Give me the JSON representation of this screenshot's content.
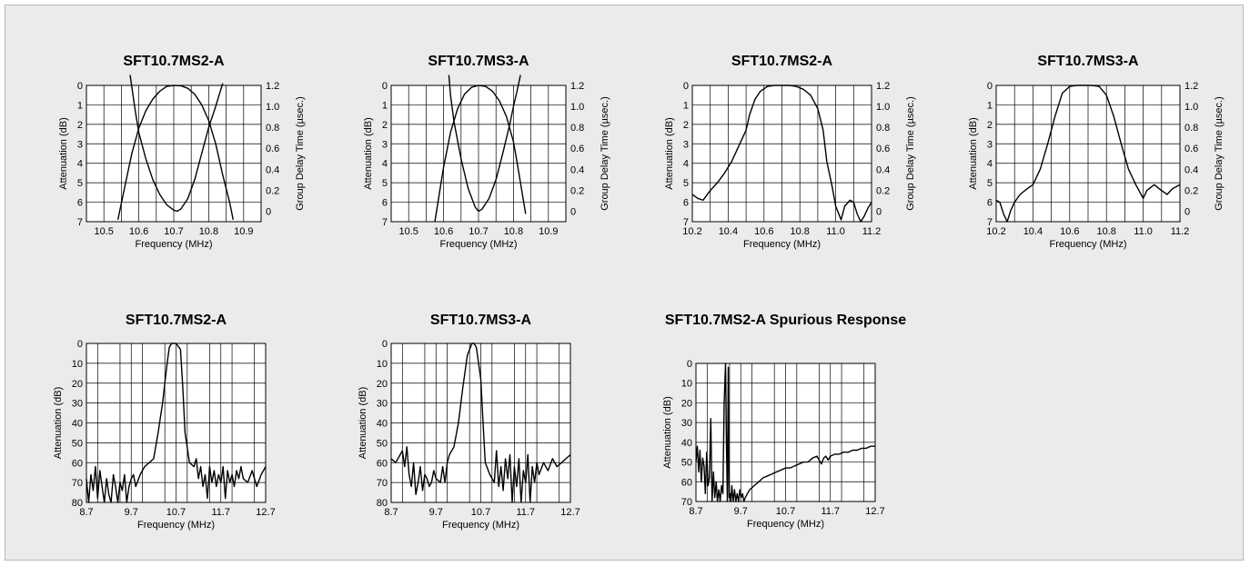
{
  "chart_data": [
    {
      "type": "line",
      "title": "SFT10.7MS2-A",
      "xlabel": "Frequency (MHz)",
      "ylabel": "Attenuation (dB)",
      "y2label": "Group Delay Time (µsec.)",
      "xlim": [
        10.45,
        10.95
      ],
      "ylim": [
        0,
        7
      ],
      "y2lim": [
        -0.1,
        1.2
      ],
      "xticks": [
        "10.5",
        "10.6",
        "10.7",
        "10.8",
        "10.9"
      ],
      "yticks": [
        "0",
        "1",
        "2",
        "3",
        "4",
        "5",
        "6",
        "7"
      ],
      "y2ticks": [
        "1.2",
        "1.0",
        "0.8",
        "0.6",
        "0.4",
        "0.2",
        "0"
      ],
      "grid": true,
      "series": [
        {
          "axis": "left",
          "x": [
            10.54,
            10.56,
            10.58,
            10.6,
            10.62,
            10.64,
            10.66,
            10.68,
            10.7,
            10.72,
            10.74,
            10.76,
            10.78,
            10.8,
            10.82,
            10.84,
            10.86,
            10.87
          ],
          "y": [
            6.9,
            5.2,
            3.5,
            2.2,
            1.3,
            0.7,
            0.3,
            0.05,
            0.0,
            0.02,
            0.15,
            0.45,
            1.0,
            1.8,
            3.0,
            4.6,
            6.0,
            6.9
          ]
        },
        {
          "axis": "right",
          "x": [
            10.575,
            10.59,
            10.6,
            10.62,
            10.64,
            10.66,
            10.68,
            10.7,
            10.71,
            10.72,
            10.74,
            10.76,
            10.78,
            10.8,
            10.82,
            10.84
          ],
          "y": [
            1.3,
            0.95,
            0.75,
            0.5,
            0.3,
            0.16,
            0.06,
            0.01,
            0.0,
            0.02,
            0.12,
            0.3,
            0.55,
            0.8,
            1.0,
            1.22
          ]
        }
      ]
    },
    {
      "type": "line",
      "title": "SFT10.7MS3-A",
      "xlabel": "Frequency (MHz)",
      "ylabel": "Attenuation (dB)",
      "y2label": "Group Delay Time (µsec.)",
      "xlim": [
        10.45,
        10.95
      ],
      "ylim": [
        0,
        7
      ],
      "y2lim": [
        -0.1,
        1.2
      ],
      "xticks": [
        "10.5",
        "10.6",
        "10.7",
        "10.8",
        "10.9"
      ],
      "yticks": [
        "0",
        "1",
        "2",
        "3",
        "4",
        "5",
        "6",
        "7"
      ],
      "y2ticks": [
        "1.2",
        "1.0",
        "0.8",
        "0.6",
        "0.4",
        "0.2",
        "0"
      ],
      "grid": true,
      "series": [
        {
          "axis": "left",
          "x": [
            10.575,
            10.59,
            10.6,
            10.62,
            10.64,
            10.66,
            10.68,
            10.7,
            10.72,
            10.74,
            10.76,
            10.78,
            10.8,
            10.81,
            10.82,
            10.835
          ],
          "y": [
            7.0,
            5.3,
            4.2,
            2.4,
            1.2,
            0.45,
            0.1,
            0.0,
            0.05,
            0.3,
            0.8,
            1.6,
            2.9,
            3.9,
            5.0,
            6.6
          ]
        },
        {
          "axis": "right",
          "x": [
            10.615,
            10.62,
            10.63,
            10.65,
            10.67,
            10.69,
            10.7,
            10.71,
            10.73,
            10.75,
            10.77,
            10.79,
            10.8,
            10.81,
            10.82
          ],
          "y": [
            1.3,
            1.1,
            0.85,
            0.5,
            0.22,
            0.04,
            0.0,
            0.02,
            0.12,
            0.3,
            0.56,
            0.84,
            1.0,
            1.14,
            1.3
          ]
        }
      ]
    },
    {
      "type": "line",
      "title": "SFT10.7MS2-A",
      "xlabel": "Frequency (MHz)",
      "ylabel": "Attenuation (dB)",
      "y2label": "Group Delay Time (µsec.)",
      "xlim": [
        10.2,
        11.2
      ],
      "ylim": [
        0,
        7
      ],
      "y2lim": [
        -0.1,
        1.2
      ],
      "xticks": [
        "10.2",
        "10.4",
        "10.6",
        "10.8",
        "11.0",
        "11.2"
      ],
      "yticks": [
        "0",
        "1",
        "2",
        "3",
        "4",
        "5",
        "6",
        "7"
      ],
      "y2ticks": [
        "1.2",
        "1.0",
        "0.8",
        "0.6",
        "0.4",
        "0.2",
        "0"
      ],
      "grid": true,
      "series": [
        {
          "axis": "left",
          "x": [
            10.2,
            10.23,
            10.26,
            10.3,
            10.34,
            10.38,
            10.42,
            10.46,
            10.5,
            10.52,
            10.55,
            10.58,
            10.62,
            10.66,
            10.7,
            10.74,
            10.78,
            10.82,
            10.86,
            10.9,
            10.93,
            10.95,
            10.98,
            11.0,
            11.03,
            11.05,
            11.08,
            11.1,
            11.12,
            11.14,
            11.16,
            11.18,
            11.2
          ],
          "y": [
            5.6,
            5.8,
            5.9,
            5.4,
            5.0,
            4.5,
            3.9,
            3.1,
            2.3,
            1.5,
            0.7,
            0.3,
            0.05,
            0.0,
            0.0,
            0.0,
            0.05,
            0.2,
            0.5,
            1.2,
            2.3,
            3.9,
            5.2,
            6.2,
            6.9,
            6.2,
            5.9,
            6.0,
            6.6,
            7.0,
            6.7,
            6.3,
            6.0
          ]
        }
      ]
    },
    {
      "type": "line",
      "title": "SFT10.7MS3-A",
      "xlabel": "Frequency (MHz)",
      "ylabel": "Attenuation (dB)",
      "y2label": "Group Delay Time (µsec.)",
      "xlim": [
        10.2,
        11.2
      ],
      "ylim": [
        0,
        7
      ],
      "y2lim": [
        -0.1,
        1.2
      ],
      "xticks": [
        "10.2",
        "10.4",
        "10.6",
        "10.8",
        "11.0",
        "11.2"
      ],
      "yticks": [
        "0",
        "1",
        "2",
        "3",
        "4",
        "5",
        "6",
        "7"
      ],
      "y2ticks": [
        "1.2",
        "1.0",
        "0.8",
        "0.6",
        "0.4",
        "0.2",
        "0"
      ],
      "grid": true,
      "series": [
        {
          "axis": "left",
          "x": [
            10.2,
            10.22,
            10.24,
            10.26,
            10.28,
            10.3,
            10.33,
            10.37,
            10.4,
            10.44,
            10.48,
            10.52,
            10.56,
            10.6,
            10.64,
            10.68,
            10.72,
            10.76,
            10.8,
            10.84,
            10.88,
            10.92,
            10.96,
            11.0,
            11.02,
            11.06,
            11.1,
            11.13,
            11.16,
            11.2
          ],
          "y": [
            5.9,
            6.0,
            6.6,
            7.0,
            6.4,
            6.0,
            5.6,
            5.3,
            5.1,
            4.3,
            3.0,
            1.6,
            0.4,
            0.05,
            0.0,
            0.0,
            0.0,
            0.05,
            0.5,
            1.6,
            3.0,
            4.3,
            5.1,
            5.8,
            5.4,
            5.1,
            5.4,
            5.6,
            5.3,
            5.1
          ]
        }
      ]
    },
    {
      "type": "line",
      "title": "SFT10.7MS2-A",
      "xlabel": "Frequency (MHz)",
      "ylabel": "Attenuation (dB)",
      "xlim": [
        8.7,
        12.7
      ],
      "ylim": [
        0,
        80
      ],
      "xticks": [
        "8.7",
        "9.7",
        "10.7",
        "11.7",
        "12.7"
      ],
      "yticks": [
        "0",
        "10",
        "20",
        "30",
        "40",
        "50",
        "60",
        "70",
        "80"
      ],
      "grid": true,
      "series": [
        {
          "axis": "left",
          "x": [
            8.7,
            8.75,
            8.8,
            8.85,
            8.9,
            8.95,
            9.0,
            9.05,
            9.1,
            9.15,
            9.2,
            9.25,
            9.3,
            9.35,
            9.4,
            9.45,
            9.5,
            9.55,
            9.6,
            9.65,
            9.7,
            9.75,
            9.8,
            9.9,
            10.0,
            10.1,
            10.2,
            10.3,
            10.4,
            10.5,
            10.55,
            10.6,
            10.7,
            10.8,
            10.85,
            10.9,
            11.0,
            11.1,
            11.15,
            11.2,
            11.25,
            11.3,
            11.35,
            11.4,
            11.45,
            11.5,
            11.55,
            11.6,
            11.65,
            11.7,
            11.75,
            11.8,
            11.85,
            11.9,
            11.95,
            12.0,
            12.05,
            12.1,
            12.15,
            12.2,
            12.3,
            12.4,
            12.5,
            12.6,
            12.7
          ],
          "y": [
            68,
            80,
            66,
            74,
            62,
            78,
            64,
            72,
            80,
            68,
            76,
            80,
            66,
            72,
            80,
            70,
            74,
            66,
            80,
            72,
            68,
            66,
            72,
            66,
            62,
            60,
            58,
            45,
            30,
            10,
            2,
            0,
            0,
            3,
            22,
            45,
            60,
            62,
            58,
            68,
            62,
            72,
            66,
            78,
            62,
            70,
            64,
            72,
            66,
            70,
            62,
            78,
            64,
            70,
            66,
            72,
            64,
            68,
            62,
            68,
            70,
            64,
            72,
            66,
            62
          ]
        }
      ]
    },
    {
      "type": "line",
      "title": "SFT10.7MS3-A",
      "xlabel": "Frequency (MHz)",
      "ylabel": "Attenuation (dB)",
      "xlim": [
        8.7,
        12.7
      ],
      "ylim": [
        0,
        80
      ],
      "xticks": [
        "8.7",
        "9.7",
        "10.7",
        "11.7",
        "12.7"
      ],
      "yticks": [
        "0",
        "10",
        "20",
        "30",
        "40",
        "50",
        "60",
        "70",
        "80"
      ],
      "grid": true,
      "series": [
        {
          "axis": "left",
          "x": [
            8.7,
            8.8,
            8.9,
            8.95,
            9.0,
            9.05,
            9.1,
            9.15,
            9.2,
            9.25,
            9.3,
            9.35,
            9.4,
            9.45,
            9.5,
            9.55,
            9.6,
            9.65,
            9.7,
            9.8,
            9.85,
            9.9,
            9.95,
            10.0,
            10.1,
            10.2,
            10.3,
            10.4,
            10.5,
            10.55,
            10.6,
            10.7,
            10.75,
            10.8,
            10.9,
            11.0,
            11.05,
            11.1,
            11.15,
            11.2,
            11.25,
            11.3,
            11.35,
            11.4,
            11.45,
            11.5,
            11.55,
            11.6,
            11.65,
            11.7,
            11.75,
            11.8,
            11.85,
            11.9,
            11.95,
            12.0,
            12.1,
            12.2,
            12.3,
            12.4,
            12.5,
            12.6,
            12.7
          ],
          "y": [
            58,
            60,
            56,
            54,
            62,
            52,
            66,
            72,
            60,
            76,
            70,
            62,
            74,
            66,
            68,
            72,
            70,
            64,
            68,
            70,
            62,
            70,
            60,
            56,
            52,
            40,
            22,
            6,
            0,
            0,
            2,
            18,
            40,
            60,
            66,
            70,
            54,
            72,
            62,
            74,
            58,
            68,
            56,
            80,
            62,
            72,
            58,
            80,
            64,
            70,
            56,
            80,
            62,
            70,
            60,
            66,
            60,
            64,
            58,
            62,
            60,
            58,
            56
          ]
        }
      ]
    },
    {
      "type": "line",
      "title": "SFT10.7MS2-A Spurious Response",
      "xlabel": "Frequency (MHz)",
      "ylabel": "Attenuation (dB)",
      "xlim": [
        8.7,
        12.7
      ],
      "ylim": [
        0,
        70
      ],
      "xticks": [
        "8.7",
        "9.7",
        "10.7",
        "11.7",
        "12.7"
      ],
      "yticks": [
        "0",
        "10",
        "20",
        "30",
        "40",
        "50",
        "60",
        "70"
      ],
      "grid": true,
      "series": [
        {
          "axis": "left",
          "x": [
            8.7,
            8.73,
            8.76,
            8.79,
            8.82,
            8.85,
            8.88,
            8.91,
            8.94,
            8.97,
            9.0,
            9.03,
            9.06,
            9.09,
            9.12,
            9.15,
            9.18,
            9.21,
            9.24,
            9.27,
            9.3,
            9.33,
            9.36,
            9.38,
            9.4,
            9.42,
            9.44,
            9.46,
            9.48,
            9.5,
            9.53,
            9.56,
            9.59,
            9.62,
            9.65,
            9.68,
            9.71,
            9.74,
            9.77,
            9.8,
            9.85,
            9.9,
            10.0,
            10.1,
            10.2,
            10.3,
            10.4,
            10.5,
            10.6,
            10.7,
            10.8,
            10.9,
            11.0,
            11.1,
            11.2,
            11.3,
            11.4,
            11.5,
            11.55,
            11.6,
            11.65,
            11.7,
            11.8,
            11.9,
            12.0,
            12.1,
            12.2,
            12.3,
            12.4,
            12.5,
            12.6,
            12.7
          ],
          "y": [
            50,
            42,
            55,
            44,
            60,
            48,
            52,
            66,
            45,
            62,
            58,
            28,
            70,
            55,
            68,
            60,
            70,
            64,
            70,
            62,
            66,
            20,
            0,
            40,
            70,
            2,
            68,
            66,
            70,
            62,
            70,
            64,
            70,
            66,
            70,
            64,
            68,
            66,
            70,
            68,
            66,
            64,
            62,
            60,
            58,
            57,
            56,
            55,
            54,
            53,
            53,
            52,
            51,
            50,
            50,
            48,
            47,
            51,
            48,
            47,
            49,
            47,
            46,
            46,
            45,
            45,
            44,
            44,
            43,
            43,
            42,
            42
          ]
        }
      ]
    }
  ]
}
